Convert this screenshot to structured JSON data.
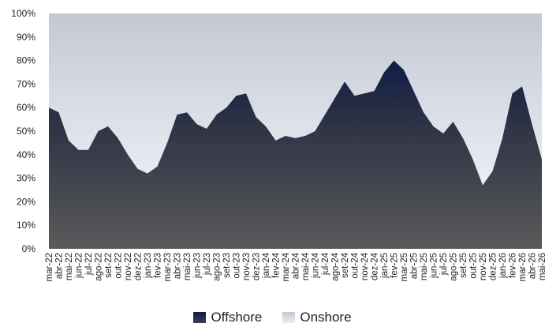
{
  "chart_data": {
    "type": "area",
    "title": "",
    "xlabel": "",
    "ylabel": "",
    "ylim": [
      0,
      100
    ],
    "yticks": [
      "0%",
      "10%",
      "20%",
      "30%",
      "40%",
      "50%",
      "60%",
      "70%",
      "80%",
      "90%",
      "100%"
    ],
    "categories": [
      "mar-22",
      "abr-22",
      "mai-22",
      "jun-22",
      "jul-22",
      "ago-22",
      "set-22",
      "out-22",
      "nov-22",
      "dez-22",
      "jan-23",
      "fev-23",
      "mar-23",
      "abr-23",
      "mai-23",
      "jun-23",
      "jul-23",
      "ago-23",
      "set-23",
      "out-23",
      "nov-23",
      "dez-23",
      "jan-24",
      "fev-24",
      "mar-24",
      "abr-24",
      "mai-24",
      "jun-24",
      "jul-24",
      "ago-24",
      "set-24",
      "out-24",
      "nov-24",
      "dez-24",
      "jan-25",
      "fev-25",
      "mar-25",
      "abr-25",
      "mai-25",
      "jun-25",
      "jul-25",
      "ago-25",
      "set-25",
      "out-25",
      "nov-25",
      "dez-25",
      "jan-26",
      "fev-26",
      "mar-26",
      "abr-26",
      "mai-26"
    ],
    "series": [
      {
        "name": "Offshore",
        "color_top": "#0f1c44",
        "color_bottom": "#5a5a5a",
        "values": [
          60,
          58,
          46,
          42,
          42,
          50,
          52,
          47,
          40,
          34,
          32,
          35,
          45,
          57,
          58,
          53,
          51,
          57,
          60,
          65,
          66,
          56,
          52,
          46,
          48,
          47,
          48,
          50,
          57,
          64,
          71,
          65,
          66,
          67,
          75,
          80,
          76,
          67,
          58,
          52,
          49,
          54,
          47,
          38,
          27,
          33,
          47,
          66,
          69,
          53,
          38
        ]
      },
      {
        "name": "Onshore",
        "color_top": "#c3c8d3",
        "color_bottom": "#eaeef6",
        "values": [
          40,
          42,
          54,
          58,
          58,
          50,
          48,
          53,
          60,
          66,
          68,
          65,
          55,
          43,
          42,
          47,
          49,
          43,
          40,
          35,
          34,
          44,
          48,
          54,
          52,
          53,
          52,
          50,
          43,
          36,
          29,
          35,
          34,
          33,
          25,
          20,
          24,
          33,
          42,
          48,
          51,
          46,
          53,
          62,
          73,
          67,
          53,
          34,
          31,
          47,
          62
        ]
      }
    ],
    "stacked": true,
    "legend_position": "bottom-center",
    "grid": false
  },
  "legend": {
    "offshore_label": "Offshore",
    "onshore_label": "Onshore",
    "offshore_swatch": "#0f1c44",
    "onshore_swatch": "#dfe3ee"
  }
}
